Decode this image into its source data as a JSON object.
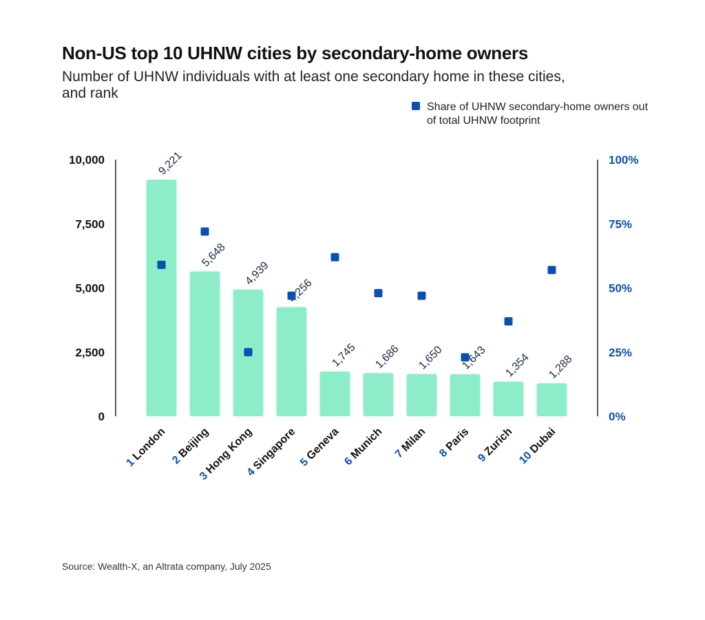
{
  "title": "Non-US top 10 UHNW cities by secondary-home owners",
  "subtitle": "Number of UHNW individuals with at least one secondary home in these cities, and rank",
  "legend": {
    "marker_label": "Share of UHNW secondary-home owners out of total UHNW footprint"
  },
  "source": "Source: Wealth-X, an Altrata company, July 2025",
  "colors": {
    "bar": "#8eedc9",
    "marker": "#0a4fb4",
    "axis": "#222222",
    "rank_text": "#0a4fb4"
  },
  "chart_data": {
    "type": "bar",
    "categories": [
      "London",
      "Beijing",
      "Hong Kong",
      "Singapore",
      "Geneva",
      "Munich",
      "Milan",
      "Paris",
      "Zurich",
      "Dubai"
    ],
    "ranks": [
      "1",
      "2",
      "3",
      "4",
      "5",
      "6",
      "7",
      "8",
      "9",
      "10"
    ],
    "series": [
      {
        "values": [
          9221,
          5648,
          4939,
          4256,
          1745,
          1686,
          1650,
          1643,
          1354,
          1288
        ],
        "data_labels": [
          "9,221",
          "5,648",
          "4,939",
          "4,256",
          "1,745",
          "1,686",
          "1,650",
          "1,643",
          "1,354",
          "1,288"
        ],
        "axis": "left",
        "kind": "bar"
      },
      {
        "name": "Share of UHNW secondary-home owners out of total UHNW footprint",
        "values": [
          59,
          72,
          25,
          47,
          62,
          48,
          47,
          23,
          37,
          57
        ],
        "axis": "right",
        "kind": "scatter",
        "unit": "%"
      }
    ],
    "ylim": [
      0,
      10000
    ],
    "y_ticks": [
      "0",
      "2,500",
      "5,000",
      "7,500",
      "10,000"
    ],
    "y2lim": [
      0,
      100
    ],
    "y2_ticks": [
      "0%",
      "25%",
      "50%",
      "75%",
      "100%"
    ],
    "grid": false,
    "legend_position": "top-right"
  }
}
